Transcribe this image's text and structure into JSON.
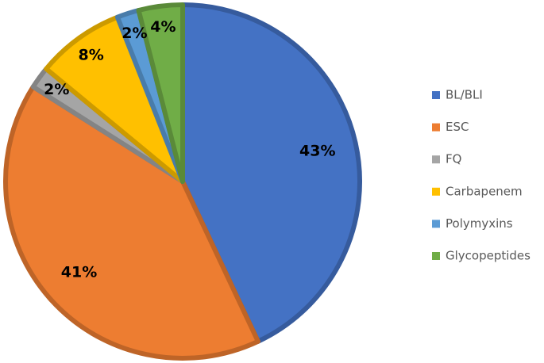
{
  "chart_data": {
    "type": "pie",
    "categories": [
      "BL/BLI",
      "ESC",
      "FQ",
      "Carbapenem",
      "Polymyxins",
      "Glycopeptides"
    ],
    "values": [
      43,
      41,
      2,
      8,
      2,
      4
    ],
    "value_labels": [
      "43%",
      "41%",
      "2%",
      "8%",
      "2%",
      "4%"
    ],
    "colors": [
      "#4472c4",
      "#ed7d31",
      "#a5a5a5",
      "#ffc000",
      "#5b9bd5",
      "#70ad47"
    ],
    "legend": "right"
  }
}
